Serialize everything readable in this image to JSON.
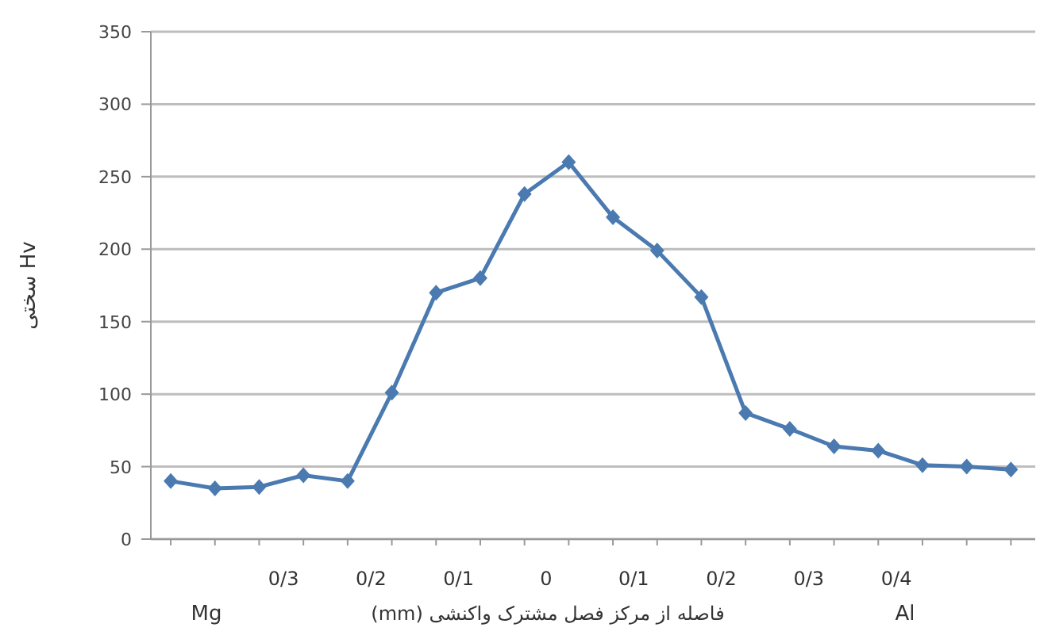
{
  "chart_data": {
    "type": "line",
    "xlabel": "فاصله از مرکز فصل مشترک واکنشی (mm)",
    "ylabel": "سختی Hv",
    "annotations": [
      "0/3",
      "0/2",
      "0/1",
      "0",
      "0/1",
      "0/2",
      "0/3",
      "0/4",
      "Mg",
      "Al"
    ],
    "categories": [
      null,
      null,
      null,
      null,
      null,
      null,
      null,
      null,
      null,
      null,
      null,
      null,
      null,
      null,
      null,
      null,
      null,
      null,
      null,
      null
    ],
    "series": [
      {
        "color": "#4a7ab0",
        "values": [
          40,
          35,
          36,
          44,
          40,
          101,
          170,
          180,
          238,
          260,
          222,
          199,
          167,
          87,
          76,
          64,
          61,
          51,
          50,
          48
        ]
      }
    ],
    "ylim": [
      0,
      350
    ],
    "yticks": [
      0,
      50,
      100,
      150,
      200,
      250,
      300,
      350
    ],
    "grid": "y",
    "marker": "diamond",
    "line_style": "solid"
  }
}
